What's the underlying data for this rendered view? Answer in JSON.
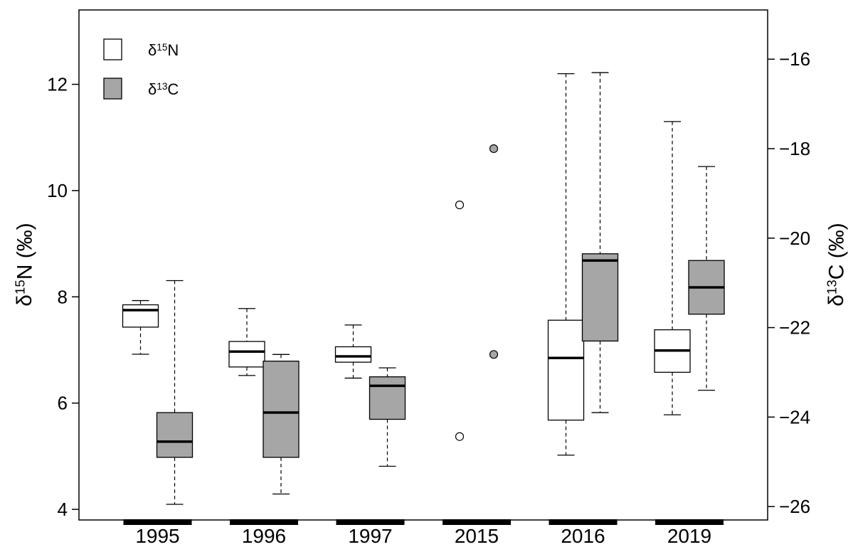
{
  "chart_data": {
    "type": "box",
    "categories": [
      "1995",
      "1996",
      "1997",
      "2015",
      "2016",
      "2019"
    ],
    "ylabel_left": {
      "base": "δ",
      "sup": "15",
      "rest": "N (‰)"
    },
    "ylabel_right": {
      "base": "δ",
      "sup": "13",
      "rest": "C (‰)"
    },
    "ylim_left": [
      3.8,
      13.4
    ],
    "ylim_right": [
      -26.3,
      -14.9
    ],
    "left_ticks": [
      4,
      6,
      8,
      10,
      12
    ],
    "right_ticks": [
      -26,
      -24,
      -22,
      -20,
      -18,
      -16
    ],
    "legend": [
      {
        "base": "δ",
        "sup": "15",
        "rest": "N",
        "color": "#ffffff"
      },
      {
        "base": "δ",
        "sup": "13",
        "rest": "C",
        "color": "#a6a6a6"
      }
    ],
    "legend_position": "top-left",
    "grid": false,
    "series": [
      {
        "name": "δ15N",
        "axis": "left",
        "color": "#ffffff",
        "boxes": [
          {
            "category": "1995",
            "min": 6.92,
            "q1": 7.43,
            "median": 7.75,
            "q3": 7.85,
            "max": 7.93,
            "outliers": []
          },
          {
            "category": "1996",
            "min": 6.52,
            "q1": 6.68,
            "median": 6.97,
            "q3": 7.16,
            "max": 7.78,
            "outliers": []
          },
          {
            "category": "1997",
            "min": 6.47,
            "q1": 6.77,
            "median": 6.88,
            "q3": 7.06,
            "max": 7.47,
            "outliers": []
          },
          {
            "category": "2015",
            "min": null,
            "q1": null,
            "median": null,
            "q3": null,
            "max": null,
            "outliers": [
              9.73,
              5.37
            ]
          },
          {
            "category": "2016",
            "min": 5.02,
            "q1": 5.68,
            "median": 6.85,
            "q3": 7.56,
            "max": 12.2,
            "outliers": []
          },
          {
            "category": "2019",
            "min": 5.78,
            "q1": 6.58,
            "median": 6.99,
            "q3": 7.38,
            "max": 11.3,
            "outliers": []
          }
        ]
      },
      {
        "name": "δ13C",
        "axis": "right",
        "color": "#a6a6a6",
        "boxes": [
          {
            "category": "1995",
            "min": -25.95,
            "q1": -24.9,
            "median": -24.55,
            "q3": -23.9,
            "max": -20.95,
            "outliers": []
          },
          {
            "category": "1996",
            "min": -25.72,
            "q1": -24.9,
            "median": -23.9,
            "q3": -22.75,
            "max": -22.6,
            "outliers": []
          },
          {
            "category": "1997",
            "min": -25.1,
            "q1": -24.05,
            "median": -23.3,
            "q3": -23.1,
            "max": -22.9,
            "outliers": []
          },
          {
            "category": "2015",
            "min": null,
            "q1": null,
            "median": null,
            "q3": null,
            "max": null,
            "outliers": [
              -18.0,
              -22.6
            ]
          },
          {
            "category": "2016",
            "min": -23.9,
            "q1": -22.3,
            "median": -20.5,
            "q3": -20.35,
            "max": -16.3,
            "outliers": []
          },
          {
            "category": "2019",
            "min": -23.4,
            "q1": -21.7,
            "median": -21.1,
            "q3": -20.5,
            "max": -18.4,
            "outliers": []
          }
        ]
      }
    ]
  }
}
